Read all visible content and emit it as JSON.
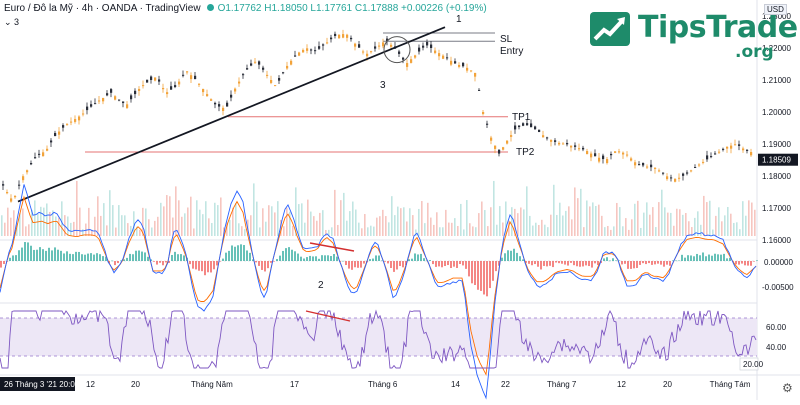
{
  "header": {
    "symbol_text": "Euro / Đô la Mỹ · 4h · OANDA · TradingView",
    "ohlc_text": "O1.17762 H1.18050 L1.17761 C1.17888 +0.00226 (+0.19%)",
    "sub_text": "3",
    "currency_label": "USD"
  },
  "logo": {
    "name": "TipsTrade",
    "tld": ".org"
  },
  "colors": {
    "up": "#f2a33a",
    "down": "#2a2e39",
    "trendline": "#131722",
    "level_line": "#e57373",
    "volume_up": "#f4b8b0",
    "volume_down": "#b2dfdb",
    "macd_line": "#2962ff",
    "signal_line": "#ff6d00",
    "rsi": "#7e57c2",
    "rsi_band": "#ede7f6",
    "divergence": "#d32f2f"
  },
  "price_axis": [
    "1.23000",
    "1.22000",
    "1.21000",
    "1.20000",
    "1.19000",
    "1.18000",
    "1.17000",
    "1.16000"
  ],
  "last_price_label": "1.18509",
  "macd_axis": [
    "0.00000",
    "-0.00500"
  ],
  "rsi_axis": [
    "60.00",
    "40.00",
    "20.00"
  ],
  "time_axis": [
    "12",
    "20",
    "Tháng Năm",
    "17",
    "Tháng 6",
    "14",
    "22",
    "Tháng 7",
    "12",
    "20",
    "Tháng Tám"
  ],
  "time_start_label": "26 Tháng 3 '21  20:00",
  "annotations": {
    "a1": "1",
    "a2": "2",
    "a3": "3",
    "sl": "SL",
    "entry": "Entry",
    "tp1": "TP1",
    "tp2": "TP2"
  },
  "chart_data": {
    "type": "candlestick",
    "instrument": "Euro / Đô la Mỹ",
    "timeframe": "4h",
    "price_range": [
      1.16,
      1.235
    ],
    "levels": {
      "SL": 1.2225,
      "Entry": 1.2215,
      "TP1": 1.1985,
      "TP2": 1.1875
    },
    "close_path": [
      [
        0,
        1.178
      ],
      [
        12,
        1.172
      ],
      [
        20,
        1.179
      ],
      [
        35,
        1.186
      ],
      [
        45,
        1.188
      ],
      [
        55,
        1.193
      ],
      [
        65,
        1.196
      ],
      [
        80,
        1.199
      ],
      [
        95,
        1.203
      ],
      [
        110,
        1.206
      ],
      [
        125,
        1.202
      ],
      [
        140,
        1.208
      ],
      [
        155,
        1.211
      ],
      [
        165,
        1.206
      ],
      [
        175,
        1.208
      ],
      [
        185,
        1.213
      ],
      [
        195,
        1.21
      ],
      [
        205,
        1.206
      ],
      [
        215,
        1.202
      ],
      [
        225,
        1.201
      ],
      [
        235,
        1.208
      ],
      [
        245,
        1.213
      ],
      [
        255,
        1.216
      ],
      [
        265,
        1.212
      ],
      [
        275,
        1.208
      ],
      [
        285,
        1.214
      ],
      [
        295,
        1.218
      ],
      [
        305,
        1.22
      ],
      [
        315,
        1.219
      ],
      [
        325,
        1.2215
      ],
      [
        335,
        1.224
      ],
      [
        345,
        1.2245
      ],
      [
        355,
        1.221
      ],
      [
        365,
        1.218
      ],
      [
        375,
        1.22
      ],
      [
        385,
        1.2225
      ],
      [
        395,
        1.2195
      ],
      [
        405,
        1.215
      ],
      [
        415,
        1.218
      ],
      [
        425,
        1.221
      ],
      [
        435,
        1.219
      ],
      [
        445,
        1.217
      ],
      [
        455,
        1.215
      ],
      [
        465,
        1.214
      ],
      [
        475,
        1.212
      ],
      [
        482,
        1.2
      ],
      [
        490,
        1.192
      ],
      [
        498,
        1.187
      ],
      [
        506,
        1.191
      ],
      [
        515,
        1.195
      ],
      [
        525,
        1.196
      ],
      [
        535,
        1.1945
      ],
      [
        545,
        1.192
      ],
      [
        555,
        1.1905
      ],
      [
        565,
        1.19
      ],
      [
        575,
        1.189
      ],
      [
        585,
        1.188
      ],
      [
        595,
        1.186
      ],
      [
        605,
        1.185
      ],
      [
        615,
        1.188
      ],
      [
        625,
        1.187
      ],
      [
        635,
        1.184
      ],
      [
        645,
        1.183
      ],
      [
        655,
        1.1825
      ],
      [
        665,
        1.18
      ],
      [
        675,
        1.179
      ],
      [
        685,
        1.1805
      ],
      [
        695,
        1.183
      ],
      [
        705,
        1.185
      ],
      [
        715,
        1.187
      ],
      [
        725,
        1.189
      ],
      [
        735,
        1.19
      ],
      [
        745,
        1.188
      ],
      [
        755,
        1.187
      ]
    ],
    "trendline": {
      "from": [
        18,
        1.172
      ],
      "to": [
        445,
        1.2265
      ]
    }
  }
}
